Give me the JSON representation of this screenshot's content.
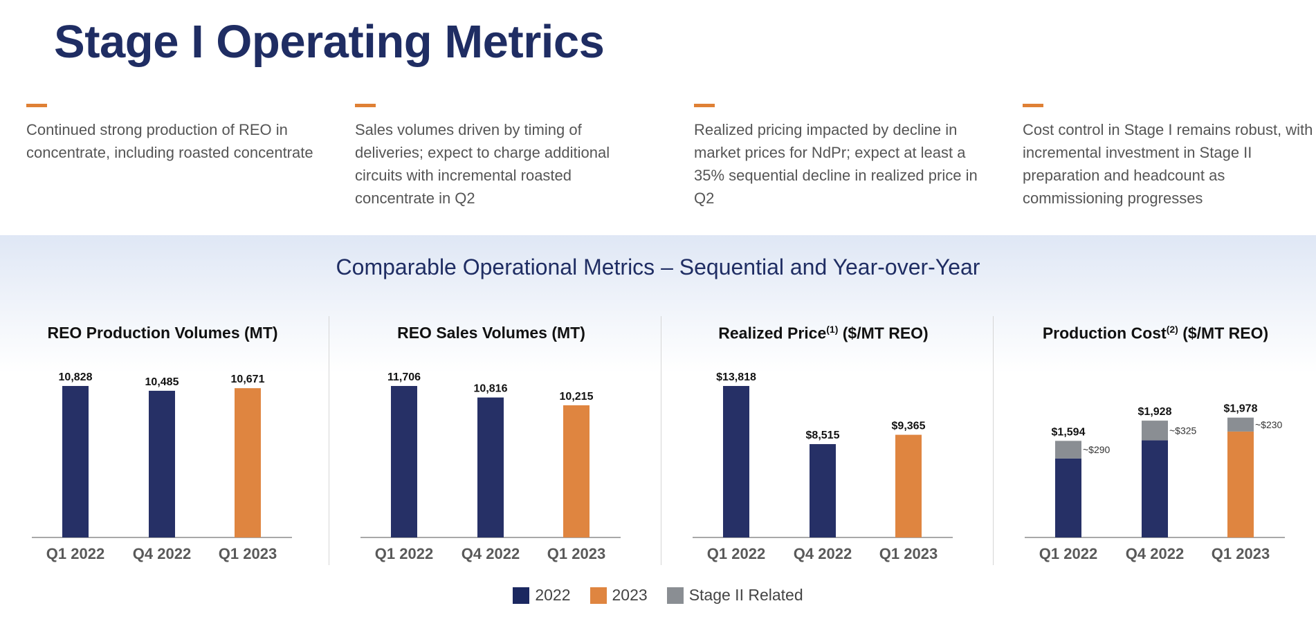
{
  "header": {
    "title": "Stage I Operating Metrics"
  },
  "notes": [
    {
      "text": "Continued strong production of REO in concentrate, including roasted concentrate"
    },
    {
      "text": "Sales volumes driven by timing of deliveries; expect to charge additional circuits with incremental roasted concentrate in Q2"
    },
    {
      "text": "Realized pricing impacted by decline in market prices for NdPr; expect at least a 35% sequential decline in realized price in Q2"
    },
    {
      "text": "Cost control in Stage I remains robust, with incremental investment in Stage II preparation and headcount as commissioning progresses"
    }
  ],
  "section": {
    "title": "Comparable Operational Metrics – Sequential and Year-over-Year"
  },
  "colors": {
    "accent": "#df8035",
    "y2022": "#263066",
    "y2023": "#df8540",
    "stage2": "#8a8e93",
    "title": "#1f2d63"
  },
  "legend": [
    {
      "label": "2022",
      "color": "#1b2860"
    },
    {
      "label": "2023",
      "color": "#df8540"
    },
    {
      "label": "Stage II Related",
      "color": "#8a8e93"
    }
  ],
  "chart_data": [
    {
      "type": "bar",
      "title": "REO Production Volumes (MT)",
      "title_sup": "",
      "title_rest": "",
      "categories": [
        "Q1 2022",
        "Q4 2022",
        "Q1 2023"
      ],
      "values": [
        10828,
        10485,
        10671
      ],
      "labels": [
        "10,828",
        "10,485",
        "10,671"
      ],
      "years": [
        "2022",
        "2022",
        "2023"
      ],
      "ylim": [
        0,
        10828
      ]
    },
    {
      "type": "bar",
      "title": "REO Sales Volumes (MT)",
      "title_sup": "",
      "title_rest": "",
      "categories": [
        "Q1 2022",
        "Q4 2022",
        "Q1 2023"
      ],
      "values": [
        11706,
        10816,
        10215
      ],
      "labels": [
        "11,706",
        "10,816",
        "10,215"
      ],
      "years": [
        "2022",
        "2022",
        "2023"
      ],
      "ylim": [
        0,
        11706
      ]
    },
    {
      "type": "bar",
      "title": "Realized Price",
      "title_sup": "(1)",
      "title_rest": " ($/MT REO)",
      "categories": [
        "Q1 2022",
        "Q4 2022",
        "Q1 2023"
      ],
      "values": [
        13818,
        8515,
        9365
      ],
      "labels": [
        "$13,818",
        "$8,515",
        "$9,365"
      ],
      "years": [
        "2022",
        "2022",
        "2023"
      ],
      "ylim": [
        0,
        13818
      ]
    },
    {
      "type": "bar",
      "stacked": true,
      "title": "Production Cost",
      "title_sup": "(2)",
      "title_rest": " ($/MT REO)",
      "categories": [
        "Q1 2022",
        "Q4 2022",
        "Q1 2023"
      ],
      "values": [
        1594,
        1928,
        1978
      ],
      "labels": [
        "$1,594",
        "$1,928",
        "$1,978"
      ],
      "years": [
        "2022",
        "2022",
        "2023"
      ],
      "series": [
        {
          "name": "Stage II Related",
          "values": [
            290,
            325,
            230
          ],
          "labels": [
            "~$290",
            "~$325",
            "~$230"
          ]
        }
      ],
      "ylim": [
        0,
        2500
      ]
    }
  ]
}
